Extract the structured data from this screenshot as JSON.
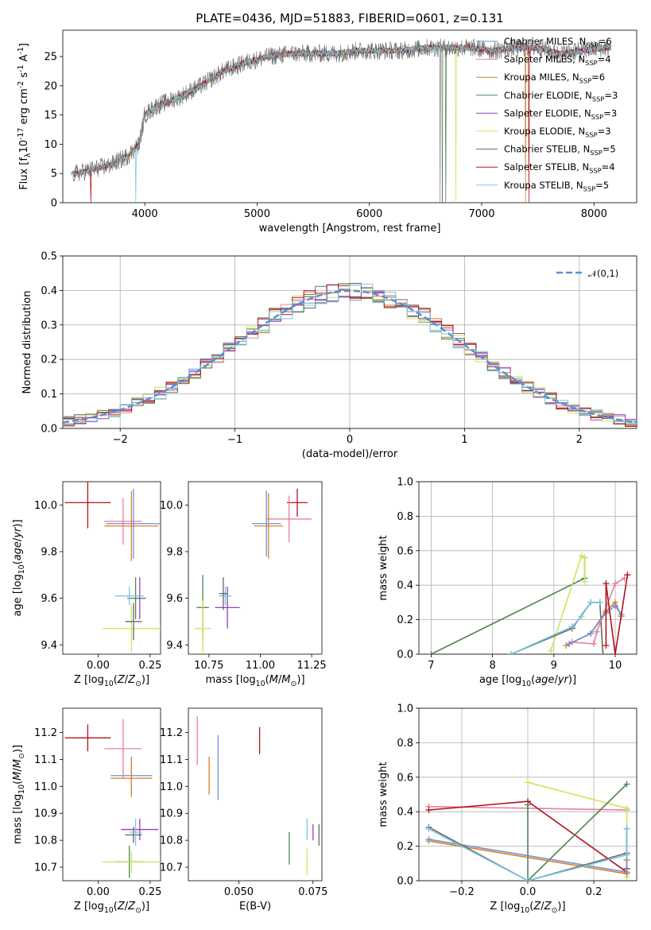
{
  "figure": {
    "title": "PLATE=0436, MJD=51883, FIBERID=0601, z=0.131"
  },
  "colors": {
    "Chabrier MILES": "#6f8fd8",
    "Salpeter MILES": "#e8809c",
    "Kroupa MILES": "#de7f24",
    "Chabrier ELODIE": "#4f8452",
    "Salpeter ELODIE": "#9b3cc0",
    "Kroupa ELODIE": "#cde55a",
    "Chabrier STELIB": "#666666",
    "Salpeter STELIB": "#b3121e",
    "Kroupa STELIB": "#78c8dc",
    "normal": "#5b8fd6"
  },
  "chart_data": [
    {
      "type": "line",
      "panel": "spectrum",
      "xlabel": "wavelength [Angstrom, rest frame]",
      "ylabel": "Flux [f$_\\lambda$10$^{-17}$ erg cm$^{-2}$ s$^{-1}$ A$^{-1}$]",
      "xlim": [
        3270,
        8380
      ],
      "ylim": [
        0,
        29.5
      ],
      "xticks": [
        4000,
        5000,
        6000,
        7000,
        8000
      ],
      "yticks": [
        0,
        5,
        10,
        15,
        20,
        25
      ],
      "series": [
        {
          "name": "Chabrier MILES, N$_{SSP}$=6",
          "color": "Chabrier MILES",
          "style": "model"
        },
        {
          "name": "Salpeter MILES, N$_{SSP}$=4",
          "color": "Salpeter MILES",
          "style": "model"
        },
        {
          "name": "Kroupa MILES, N$_{SSP}$=6",
          "color": "Kroupa MILES",
          "style": "model",
          "drops": [
            7390
          ]
        },
        {
          "name": "Chabrier ELODIE, N$_{SSP}$=3",
          "color": "Chabrier ELODIE",
          "style": "model",
          "drops": [
            6680
          ]
        },
        {
          "name": "Salpeter ELODIE, N$_{SSP}$=3",
          "color": "Salpeter ELODIE",
          "style": "model"
        },
        {
          "name": "Kroupa ELODIE, N$_{SSP}$=3",
          "color": "Kroupa ELODIE",
          "style": "model",
          "drops": [
            6770
          ]
        },
        {
          "name": "Chabrier STELIB, N$_{SSP}$=5",
          "color": "Chabrier STELIB",
          "style": "data",
          "drops": [
            6630,
            6650
          ]
        },
        {
          "name": "Salpeter STELIB, N$_{SSP}$=4",
          "color": "Salpeter STELIB",
          "style": "model",
          "drops": [
            3520,
            7420
          ]
        },
        {
          "name": "Kroupa STELIB, N$_{SSP}$=5",
          "color": "Kroupa STELIB",
          "style": "model",
          "drops": [
            3920
          ]
        }
      ],
      "continuum": {
        "x": [
          3400,
          3500,
          3700,
          3850,
          3950,
          4000,
          4100,
          4300,
          4500,
          4700,
          4900,
          5100,
          5300,
          5500,
          5700,
          5900,
          6100,
          6300,
          6500,
          6700,
          6900,
          7100,
          7300,
          7500,
          7700,
          7900,
          8100
        ],
        "y": [
          5,
          5.5,
          6.5,
          8,
          10,
          15,
          16.5,
          18,
          20,
          22.5,
          24,
          25,
          25.5,
          25.5,
          25.5,
          26,
          26,
          26,
          26.5,
          26.5,
          26.5,
          26,
          26.5,
          26.5,
          25.5,
          26,
          26.5
        ]
      }
    },
    {
      "type": "line",
      "panel": "residuals",
      "xlabel": "(data-model)/error",
      "ylabel": "Normed distribution",
      "xlim": [
        -2.5,
        2.5
      ],
      "ylim": [
        0,
        0.5
      ],
      "xticks": [
        -2,
        -1,
        0,
        1,
        2
      ],
      "yticks": [
        0.0,
        0.1,
        0.2,
        0.3,
        0.4,
        0.5
      ],
      "legend": "$\\mathcal{N}(0,1)$",
      "grid": true
    },
    {
      "type": "scatter",
      "panel": "age_vs_Z",
      "xlabel": "Z [log$_{10}$($Z/Z_\\odot$)]",
      "ylabel": "age  [log$_{10}$($age/yr$)]",
      "xlim": [
        -0.17,
        0.3
      ],
      "ylim": [
        9.36,
        10.1
      ],
      "xticks": [
        0.0,
        0.25
      ],
      "yticks": [
        9.4,
        9.6,
        9.8,
        10.0
      ],
      "points": [
        {
          "s": "Salpeter STELIB",
          "x": -0.05,
          "xe": 0.11,
          "y": 10.01,
          "ye": 0.11
        },
        {
          "s": "Salpeter MILES",
          "x": 0.12,
          "xe": 0.09,
          "y": 9.93,
          "ye": 0.1
        },
        {
          "s": "Chabrier MILES",
          "x": 0.17,
          "xe": 0.13,
          "y": 9.92,
          "ye": 0.15
        },
        {
          "s": "Kroupa MILES",
          "x": 0.16,
          "xe": 0.13,
          "y": 9.91,
          "ye": 0.15
        },
        {
          "s": "Salpeter ELODIE",
          "x": 0.2,
          "xe": 0.03,
          "y": 9.6,
          "ye": 0.09
        },
        {
          "s": "Chabrier ELODIE",
          "x": 0.18,
          "xe": 0.04,
          "y": 9.6,
          "ye": 0.09
        },
        {
          "s": "Kroupa STELIB",
          "x": 0.15,
          "xe": 0.07,
          "y": 9.61,
          "ye": 0.04
        },
        {
          "s": "Kroupa ELODIE",
          "x": 0.16,
          "xe": 0.14,
          "y": 9.47,
          "ye": 0.1
        },
        {
          "s": "Chabrier STELIB",
          "x": 0.17,
          "xe": 0.04,
          "y": 9.5,
          "ye": 0.08
        }
      ]
    },
    {
      "type": "scatter",
      "panel": "age_vs_mass",
      "xlabel": "mass [log$_{10}$($M/M_\\odot$)]",
      "ylabel": "",
      "xlim": [
        10.65,
        11.3
      ],
      "ylim": [
        9.36,
        10.1
      ],
      "xticks": [
        10.75,
        11.0,
        11.25
      ],
      "yticks": [
        9.4,
        9.6,
        9.8,
        10.0
      ],
      "points": [
        {
          "s": "Salpeter STELIB",
          "x": 11.18,
          "xe": 0.05,
          "y": 10.01,
          "ye": 0.06
        },
        {
          "s": "Salpeter MILES",
          "x": 11.14,
          "xe": 0.11,
          "y": 9.94,
          "ye": 0.1
        },
        {
          "s": "Chabrier MILES",
          "x": 11.03,
          "xe": 0.07,
          "y": 9.92,
          "ye": 0.14
        },
        {
          "s": "Kroupa MILES",
          "x": 11.04,
          "xe": 0.07,
          "y": 9.91,
          "ye": 0.14
        },
        {
          "s": "Salpeter ELODIE",
          "x": 10.84,
          "xe": 0.06,
          "y": 9.56,
          "ye": 0.09
        },
        {
          "s": "Kroupa STELIB",
          "x": 10.83,
          "xe": 0.03,
          "y": 9.61,
          "ye": 0.04
        },
        {
          "s": "Chabrier STELIB",
          "x": 10.82,
          "xe": 0.02,
          "y": 9.62,
          "ye": 0.07
        },
        {
          "s": "Chabrier ELODIE",
          "x": 10.72,
          "xe": 0.03,
          "y": 9.56,
          "ye": 0.14
        },
        {
          "s": "Kroupa ELODIE",
          "x": 10.72,
          "xe": 0.04,
          "y": 9.47,
          "ye": 0.12
        }
      ]
    },
    {
      "type": "line",
      "panel": "weight_vs_age",
      "xlabel": "age  [log$_{10}$($age/yr$)]",
      "ylabel": "mass weight",
      "xlim": [
        6.8,
        10.35
      ],
      "ylim": [
        0,
        1
      ],
      "xticks": [
        7,
        8,
        9,
        10
      ],
      "yticks": [
        0.0,
        0.2,
        0.4,
        0.6,
        0.8,
        1.0
      ],
      "grid": true,
      "series": [
        {
          "s": "Chabrier ELODIE",
          "x": [
            7.0,
            9.5,
            9.5
          ],
          "y": [
            0.0,
            0.44,
            0.56
          ]
        },
        {
          "s": "Kroupa ELODIE",
          "x": [
            8.95,
            9.45,
            9.5,
            9.5
          ],
          "y": [
            0.02,
            0.57,
            0.56,
            0.42
          ]
        },
        {
          "s": "Chabrier STELIB",
          "x": [
            8.3,
            9.3,
            9.6,
            9.75,
            9.8
          ],
          "y": [
            0.0,
            0.15,
            0.3,
            0.3,
            0.0
          ]
        },
        {
          "s": "Kroupa STELIB",
          "x": [
            8.3,
            9.3,
            9.45,
            9.6,
            9.75
          ],
          "y": [
            0.0,
            0.16,
            0.22,
            0.3,
            0.3
          ]
        },
        {
          "s": "Salpeter MILES",
          "x": [
            9.3,
            9.65,
            9.7,
            10.0,
            10.15
          ],
          "y": [
            0.07,
            0.06,
            0.13,
            0.41,
            0.44
          ]
        },
        {
          "s": "Kroupa MILES",
          "x": [
            9.2,
            9.6,
            9.85,
            10.0,
            10.1
          ],
          "y": [
            0.05,
            0.12,
            0.25,
            0.3,
            0.22
          ]
        },
        {
          "s": "Chabrier MILES",
          "x": [
            9.25,
            9.6,
            9.85,
            10.0,
            10.1
          ],
          "y": [
            0.06,
            0.12,
            0.24,
            0.28,
            0.23
          ]
        },
        {
          "s": "Salpeter STELIB",
          "x": [
            9.85,
            9.85,
            10.0,
            10.2
          ],
          "y": [
            0.05,
            0.41,
            0.0,
            0.46
          ]
        }
      ]
    },
    {
      "type": "scatter",
      "panel": "mass_vs_Z",
      "xlabel": "Z [log$_{10}$($Z/Z_\\odot$)]",
      "ylabel": "mass [log$_{10}$($M/M_\\odot$)]",
      "xlim": [
        -0.17,
        0.3
      ],
      "ylim": [
        10.65,
        11.29
      ],
      "xticks": [
        0.0,
        0.25
      ],
      "yticks": [
        10.7,
        10.8,
        10.9,
        11.0,
        11.1,
        11.2
      ],
      "points": [
        {
          "s": "Salpeter STELIB",
          "x": -0.05,
          "xe": 0.11,
          "y": 11.18,
          "ye": 0.05
        },
        {
          "s": "Salpeter MILES",
          "x": 0.12,
          "xe": 0.09,
          "y": 11.14,
          "ye": 0.11
        },
        {
          "s": "Chabrier MILES",
          "x": 0.16,
          "xe": 0.1,
          "y": 11.04,
          "ye": 0.07
        },
        {
          "s": "Kroupa MILES",
          "x": 0.16,
          "xe": 0.1,
          "y": 11.03,
          "ye": 0.07
        },
        {
          "s": "Salpeter ELODIE",
          "x": 0.2,
          "xe": 0.09,
          "y": 10.84,
          "ye": 0.04
        },
        {
          "s": "Chabrier STELIB",
          "x": 0.17,
          "xe": 0.04,
          "y": 10.82,
          "ye": 0.03
        },
        {
          "s": "Kroupa STELIB",
          "x": 0.18,
          "xe": 0.03,
          "y": 10.83,
          "ye": 0.05
        },
        {
          "s": "Chabrier ELODIE",
          "x": 0.15,
          "xe": 0.07,
          "y": 10.72,
          "ye": 0.06
        },
        {
          "s": "Kroupa ELODIE",
          "x": 0.16,
          "xe": 0.14,
          "y": 10.72,
          "ye": 0.04
        }
      ]
    },
    {
      "type": "scatter",
      "panel": "mass_vs_ebv",
      "xlabel": "E(B-V)",
      "ylabel": "",
      "xlim": [
        0.033,
        0.078
      ],
      "ylim": [
        10.65,
        11.29
      ],
      "xticks": [
        0.05,
        0.075
      ],
      "yticks": [
        10.7,
        10.8,
        10.9,
        11.0,
        11.1,
        11.2
      ],
      "points": [
        {
          "s": "Salpeter MILES",
          "x": 0.036,
          "xe": 0,
          "y": 11.17,
          "ye": 0.09
        },
        {
          "s": "Kroupa MILES",
          "x": 0.04,
          "xe": 0,
          "y": 11.04,
          "ye": 0.07
        },
        {
          "s": "Chabrier MILES",
          "x": 0.043,
          "xe": 0,
          "y": 11.07,
          "ye": 0.12
        },
        {
          "s": "Salpeter STELIB",
          "x": 0.057,
          "xe": 0,
          "y": 11.17,
          "ye": 0.05
        },
        {
          "s": "Chabrier ELODIE",
          "x": 0.067,
          "xe": 0,
          "y": 10.77,
          "ye": 0.06
        },
        {
          "s": "Kroupa STELIB",
          "x": 0.073,
          "xe": 0,
          "y": 10.84,
          "ye": 0.04
        },
        {
          "s": "Kroupa ELODIE",
          "x": 0.073,
          "xe": 0,
          "y": 10.72,
          "ye": 0.05
        },
        {
          "s": "Salpeter ELODIE",
          "x": 0.075,
          "xe": 0,
          "y": 10.83,
          "ye": 0.03
        },
        {
          "s": "Chabrier STELIB",
          "x": 0.077,
          "xe": 0,
          "y": 10.82,
          "ye": 0.04
        }
      ]
    },
    {
      "type": "line",
      "panel": "weight_vs_Z",
      "xlabel": "Z [log$_{10}$($Z/Z_\\odot$)]",
      "ylabel": "mass weight",
      "xlim": [
        -0.33,
        0.33
      ],
      "ylim": [
        0,
        1
      ],
      "xticks": [
        -0.2,
        0.0,
        0.2
      ],
      "yticks": [
        0.0,
        0.2,
        0.4,
        0.6,
        0.8,
        1.0
      ],
      "grid": true,
      "series": [
        {
          "s": "Salpeter MILES",
          "x": [
            -0.3,
            0.3
          ],
          "y": [
            0.43,
            0.41
          ]
        },
        {
          "s": "Kroupa ELODIE",
          "x": [
            0.0,
            0.3,
            0.3
          ],
          "y": [
            0.57,
            0.42,
            0.02
          ]
        },
        {
          "s": "Salpeter STELIB",
          "x": [
            -0.3,
            0.0,
            0.3,
            0.3
          ],
          "y": [
            0.41,
            0.46,
            0.05,
            0.07
          ]
        },
        {
          "s": "Chabrier ELODIE",
          "x": [
            0.0,
            0.0,
            0.3
          ],
          "y": [
            0.44,
            0.0,
            0.56
          ]
        },
        {
          "s": "Kroupa MILES",
          "x": [
            -0.3,
            0.3,
            0.3
          ],
          "y": [
            0.23,
            0.04,
            0.12
          ]
        },
        {
          "s": "Chabrier MILES",
          "x": [
            -0.3,
            0.3,
            0.3
          ],
          "y": [
            0.24,
            0.05,
            0.3
          ]
        },
        {
          "s": "Chabrier STELIB",
          "x": [
            -0.3,
            0.0,
            0.3,
            0.3
          ],
          "y": [
            0.31,
            0.0,
            0.16,
            0.3
          ]
        },
        {
          "s": "Kroupa STELIB",
          "x": [
            -0.3,
            0.0,
            0.3,
            0.3
          ],
          "y": [
            0.3,
            0.0,
            0.15,
            0.3
          ]
        }
      ]
    }
  ]
}
